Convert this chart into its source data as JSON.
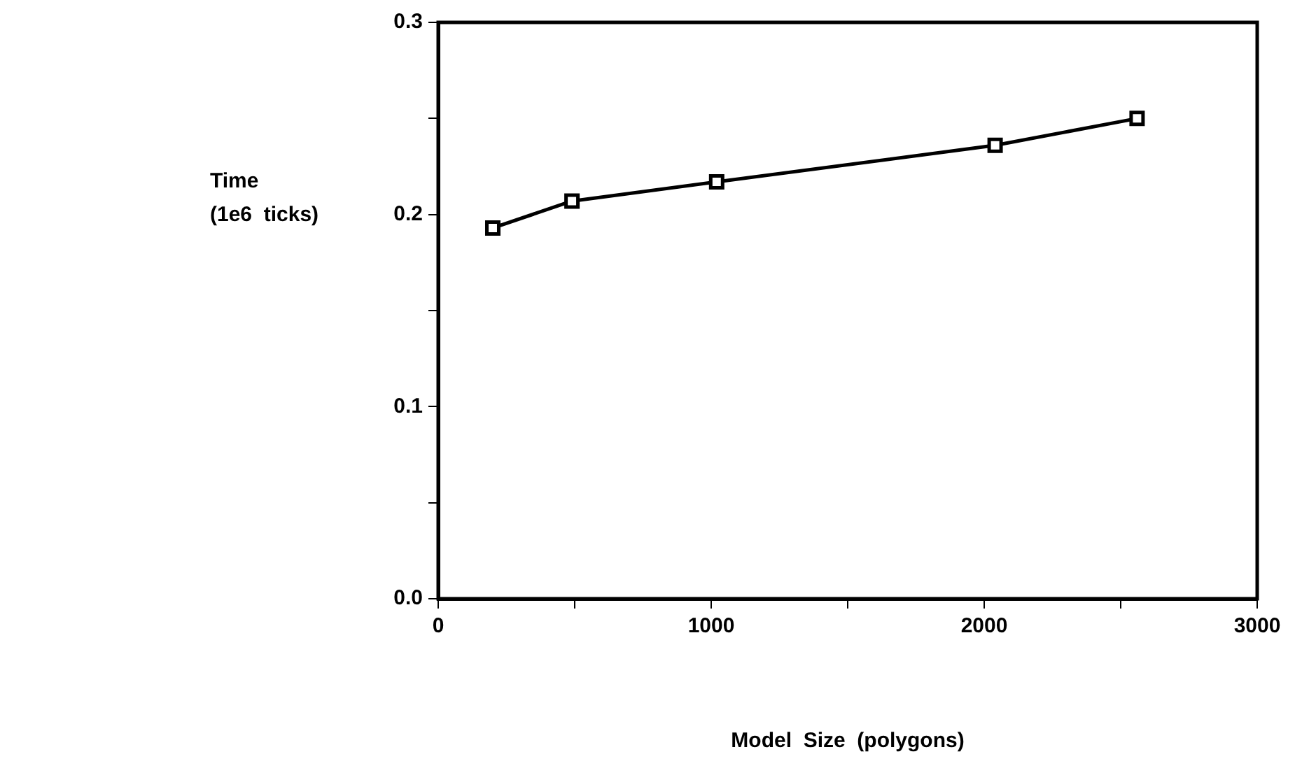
{
  "chart_data": {
    "type": "line",
    "xlabel": "Model  Size  (polygons)",
    "ylabel": "Time\n(1e6  ticks)",
    "x": [
      200,
      490,
      1020,
      2040,
      2560
    ],
    "series": [
      {
        "color": "#000000",
        "values": [
          0.193,
          0.207,
          0.217,
          0.236,
          0.25
        ]
      }
    ],
    "xlim": [
      0,
      3000
    ],
    "xticks": [
      0,
      {
        "value": 500,
        "label": null
      },
      1000,
      {
        "value": 1500,
        "label": null
      },
      2000,
      {
        "value": 2500,
        "label": null
      },
      3000
    ],
    "ylim": [
      0,
      0.3
    ],
    "yticks": [
      {
        "value": 0,
        "label": "0.0"
      },
      {
        "value": 0.05,
        "label": null
      },
      0.1,
      {
        "value": 0.15,
        "label": null
      },
      0.2,
      {
        "value": 0.25,
        "label": null
      },
      0.3
    ],
    "marker": "square",
    "line_style": "solid",
    "grid": false,
    "legend": false
  }
}
